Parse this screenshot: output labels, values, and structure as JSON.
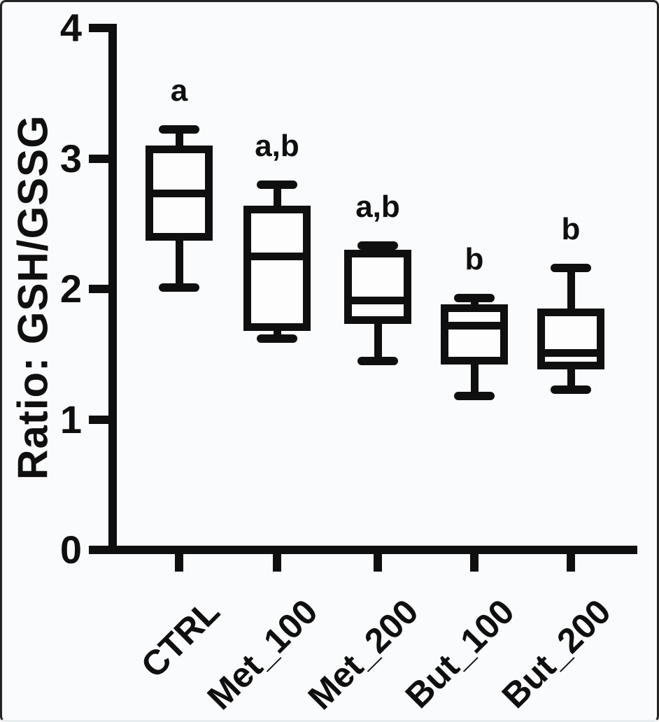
{
  "chart_data": {
    "type": "boxplot",
    "title": "",
    "ylabel": "Ratio: GSH/GSSG",
    "xlabel": "",
    "ylim": [
      0,
      4
    ],
    "yticks": [
      0,
      1,
      2,
      3,
      4
    ],
    "grid": false,
    "legend": false,
    "ink_color": "#0f0f0f",
    "background_color": "#fafbfc",
    "categories": [
      "CTRL",
      "Met_100",
      "Met_200",
      "But_100",
      "But_200"
    ],
    "series": [
      {
        "category": "CTRL",
        "min": 2.01,
        "q1": 2.4,
        "median": 2.73,
        "q3": 3.07,
        "max": 3.22,
        "sig_label": "a"
      },
      {
        "category": "Met_100",
        "min": 1.62,
        "q1": 1.71,
        "median": 2.25,
        "q3": 2.61,
        "max": 2.8,
        "sig_label": "a,b"
      },
      {
        "category": "Met_200",
        "min": 1.45,
        "q1": 1.76,
        "median": 1.91,
        "q3": 2.27,
        "max": 2.33,
        "sig_label": "a,b"
      },
      {
        "category": "But_100",
        "min": 1.18,
        "q1": 1.45,
        "median": 1.72,
        "q3": 1.85,
        "max": 1.93,
        "sig_label": "b"
      },
      {
        "category": "But_200",
        "min": 1.23,
        "q1": 1.41,
        "median": 1.51,
        "q3": 1.82,
        "max": 2.16,
        "sig_label": "b"
      }
    ]
  }
}
